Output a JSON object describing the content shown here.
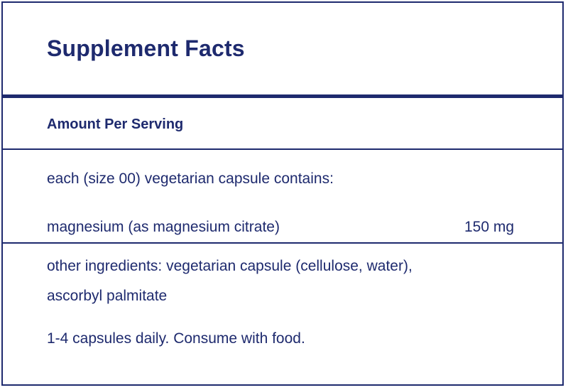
{
  "label": {
    "title": "Supplement Facts",
    "amount_per_serving": "Amount Per Serving",
    "serving_description": "each (size 00) vegetarian capsule contains:",
    "ingredients": [
      {
        "name": "magnesium (as magnesium citrate)",
        "amount": "150 mg"
      }
    ],
    "other_ingredients_line1": "other ingredients: vegetarian capsule (cellulose, water),",
    "other_ingredients_line2": "ascorbyl palmitate",
    "directions": "1-4 capsules daily. Consume with food."
  },
  "colors": {
    "text": "#1e2a6e",
    "border": "#1e2a6e",
    "background": "#ffffff"
  }
}
